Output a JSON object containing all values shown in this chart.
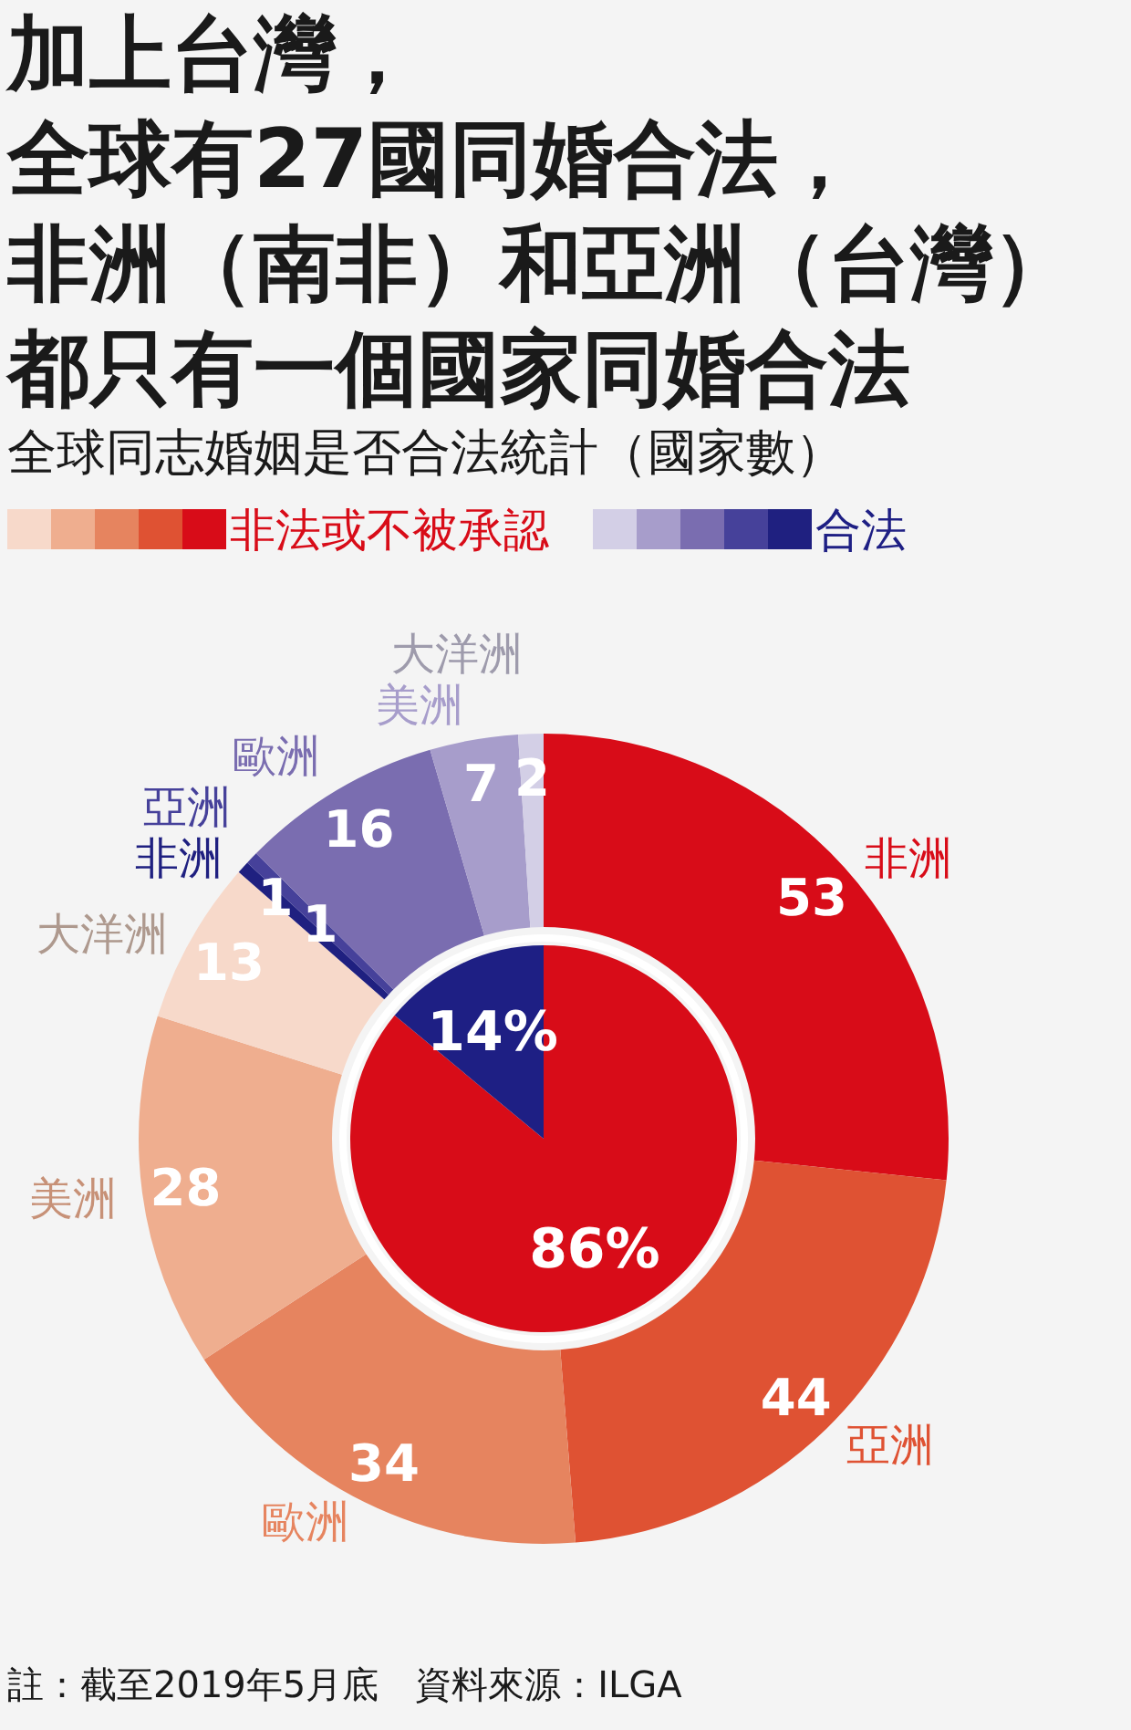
{
  "chart_data": [
    {
      "type": "pie",
      "title": "加上台灣，全球有27國同婚合法，非洲（南非）和亞洲（台灣）都只有一個國家同婚合法",
      "subtitle": "全球同志婚姻是否合法統計（國家數）",
      "categories": [
        "非法或不被承認",
        "合法"
      ],
      "values": [
        86,
        14
      ],
      "value_labels": [
        "86%",
        "14%"
      ],
      "colors": [
        "#d80c18",
        "#1e1f84"
      ],
      "legend": "top",
      "annotations": [
        "註：截至2019年5月底　資料來源：ILGA"
      ]
    },
    {
      "type": "donut",
      "categories": [
        "非洲",
        "亞洲",
        "歐洲",
        "美洲",
        "大洋洲",
        "非洲",
        "亞洲",
        "歐洲",
        "美洲",
        "大洋洲"
      ],
      "values": [
        53,
        44,
        34,
        28,
        13,
        1,
        1,
        16,
        7,
        2
      ],
      "colors": [
        "#d80c18",
        "#df5233",
        "#e6845f",
        "#efae8f",
        "#f7d9ca",
        "#1f2080",
        "#46419a",
        "#7a6db0",
        "#a79dcb",
        "#d3cfe6"
      ],
      "data_labels": true
    }
  ]
}
